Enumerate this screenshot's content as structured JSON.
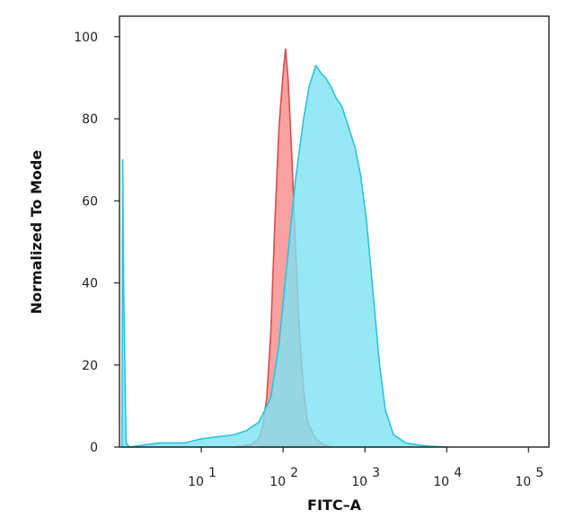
{
  "chart_data": {
    "type": "area",
    "xlabel": "FITC–A",
    "ylabel": "Normalized To Mode",
    "xscale": "log",
    "xlim": [
      0,
      5.25
    ],
    "ylim": [
      0,
      105
    ],
    "grid": false,
    "legend": "none",
    "y_ticks": [
      0,
      20,
      40,
      60,
      80,
      100
    ],
    "x_ticks": [
      {
        "base": "10",
        "exp": "1",
        "value": 1
      },
      {
        "base": "10",
        "exp": "2",
        "value": 2
      },
      {
        "base": "10",
        "exp": "3",
        "value": 3
      },
      {
        "base": "10",
        "exp": "4",
        "value": 4
      },
      {
        "base": "10",
        "exp": "5",
        "value": 5
      }
    ],
    "series": [
      {
        "color_fill": "#f9a1a1",
        "color_line": "#d94c4c",
        "x": [
          1.38,
          1.6,
          1.7,
          1.75,
          1.8,
          1.85,
          1.9,
          1.95,
          2.0,
          2.03,
          2.06,
          2.1,
          2.15,
          2.2,
          2.25,
          2.3,
          2.4,
          2.5,
          2.6
        ],
        "y": [
          0,
          0.5,
          2,
          5,
          12,
          28,
          55,
          78,
          91,
          97,
          90,
          74,
          50,
          28,
          14,
          6,
          2,
          0.5,
          0
        ]
      },
      {
        "color_fill": "#7de2f2",
        "color_line": "#2cc3dc",
        "x": [
          0.03,
          0.04,
          0.05,
          0.08,
          0.12,
          0.3,
          0.5,
          0.8,
          1.0,
          1.2,
          1.4,
          1.55,
          1.7,
          1.85,
          1.95,
          2.05,
          2.15,
          2.25,
          2.32,
          2.4,
          2.47,
          2.52,
          2.58,
          2.65,
          2.72,
          2.8,
          2.88,
          2.95,
          3.02,
          3.08,
          3.12,
          3.18,
          3.25,
          3.35,
          3.5,
          3.65,
          3.8,
          4.0
        ],
        "y": [
          0,
          70,
          40,
          1,
          0,
          0.5,
          1,
          1,
          2,
          2.5,
          3,
          4,
          6,
          12,
          25,
          45,
          65,
          80,
          88,
          93,
          91,
          90,
          88,
          85,
          83,
          78,
          73,
          66,
          55,
          42,
          33,
          20,
          9,
          3,
          1,
          0.5,
          0.2,
          0
        ]
      }
    ]
  }
}
